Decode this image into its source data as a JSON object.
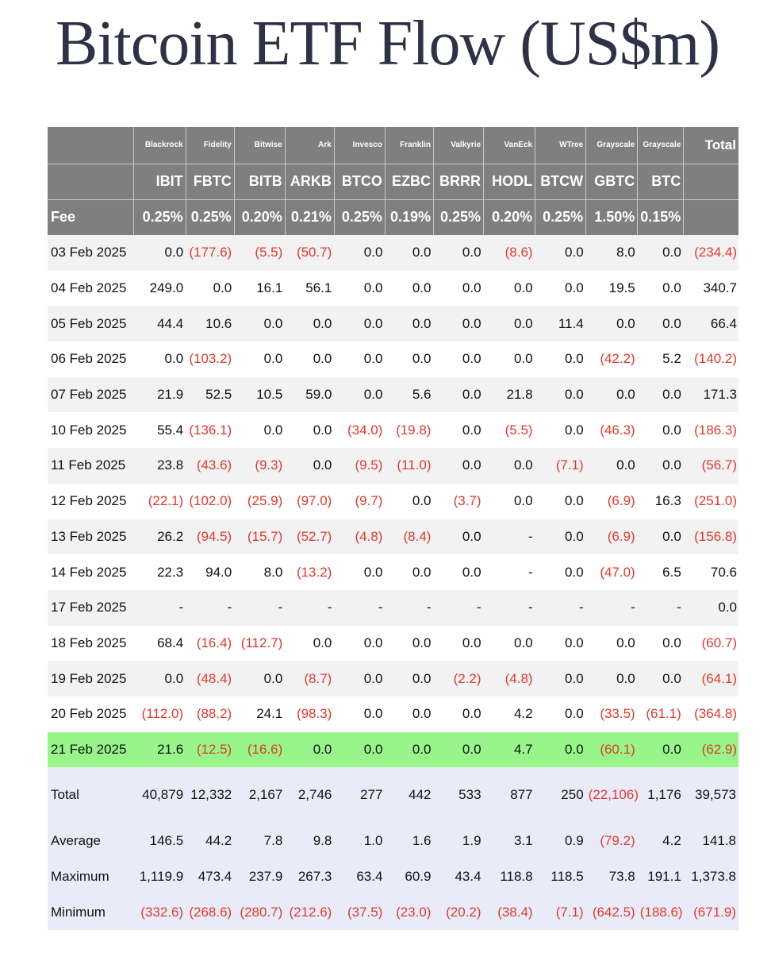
{
  "title": "Bitcoin ETF Flow (US$m)",
  "header": {
    "issuers": [
      "Blackrock",
      "Fidelity",
      "Bitwise",
      "Ark",
      "Invesco",
      "Franklin",
      "Valkyrie",
      "VanEck",
      "WTree",
      "Grayscale",
      "Grayscale"
    ],
    "total_label": "Total",
    "tickers": [
      "IBIT",
      "FBTC",
      "BITB",
      "ARKB",
      "BTCO",
      "EZBC",
      "BRRR",
      "HODL",
      "BTCW",
      "GBTC",
      "BTC"
    ],
    "fee_label": "Fee",
    "fees": [
      "0.25%",
      "0.25%",
      "0.20%",
      "0.21%",
      "0.25%",
      "0.19%",
      "0.25%",
      "0.20%",
      "0.25%",
      "1.50%",
      "0.15%"
    ]
  },
  "rows": [
    {
      "date": "03 Feb 2025",
      "values": [
        "0.0",
        "(177.6)",
        "(5.5)",
        "(50.7)",
        "0.0",
        "0.0",
        "0.0",
        "(8.6)",
        "0.0",
        "8.0",
        "0.0"
      ],
      "total": "(234.4)"
    },
    {
      "date": "04 Feb 2025",
      "values": [
        "249.0",
        "0.0",
        "16.1",
        "56.1",
        "0.0",
        "0.0",
        "0.0",
        "0.0",
        "0.0",
        "19.5",
        "0.0"
      ],
      "total": "340.7"
    },
    {
      "date": "05 Feb 2025",
      "values": [
        "44.4",
        "10.6",
        "0.0",
        "0.0",
        "0.0",
        "0.0",
        "0.0",
        "0.0",
        "11.4",
        "0.0",
        "0.0"
      ],
      "total": "66.4"
    },
    {
      "date": "06 Feb 2025",
      "values": [
        "0.0",
        "(103.2)",
        "0.0",
        "0.0",
        "0.0",
        "0.0",
        "0.0",
        "0.0",
        "0.0",
        "(42.2)",
        "5.2"
      ],
      "total": "(140.2)"
    },
    {
      "date": "07 Feb 2025",
      "values": [
        "21.9",
        "52.5",
        "10.5",
        "59.0",
        "0.0",
        "5.6",
        "0.0",
        "21.8",
        "0.0",
        "0.0",
        "0.0"
      ],
      "total": "171.3"
    },
    {
      "date": "10 Feb 2025",
      "values": [
        "55.4",
        "(136.1)",
        "0.0",
        "0.0",
        "(34.0)",
        "(19.8)",
        "0.0",
        "(5.5)",
        "0.0",
        "(46.3)",
        "0.0"
      ],
      "total": "(186.3)"
    },
    {
      "date": "11 Feb 2025",
      "values": [
        "23.8",
        "(43.6)",
        "(9.3)",
        "0.0",
        "(9.5)",
        "(11.0)",
        "0.0",
        "0.0",
        "(7.1)",
        "0.0",
        "0.0"
      ],
      "total": "(56.7)"
    },
    {
      "date": "12 Feb 2025",
      "values": [
        "(22.1)",
        "(102.0)",
        "(25.9)",
        "(97.0)",
        "(9.7)",
        "0.0",
        "(3.7)",
        "0.0",
        "0.0",
        "(6.9)",
        "16.3"
      ],
      "total": "(251.0)"
    },
    {
      "date": "13 Feb 2025",
      "values": [
        "26.2",
        "(94.5)",
        "(15.7)",
        "(52.7)",
        "(4.8)",
        "(8.4)",
        "0.0",
        "-",
        "0.0",
        "(6.9)",
        "0.0"
      ],
      "total": "(156.8)"
    },
    {
      "date": "14 Feb 2025",
      "values": [
        "22.3",
        "94.0",
        "8.0",
        "(13.2)",
        "0.0",
        "0.0",
        "0.0",
        "-",
        "0.0",
        "(47.0)",
        "6.5"
      ],
      "total": "70.6"
    },
    {
      "date": "17 Feb 2025",
      "values": [
        "-",
        "-",
        "-",
        "-",
        "-",
        "-",
        "-",
        "-",
        "-",
        "-",
        "-"
      ],
      "total": "0.0"
    },
    {
      "date": "18 Feb 2025",
      "values": [
        "68.4",
        "(16.4)",
        "(112.7)",
        "0.0",
        "0.0",
        "0.0",
        "0.0",
        "0.0",
        "0.0",
        "0.0",
        "0.0"
      ],
      "total": "(60.7)"
    },
    {
      "date": "19 Feb 2025",
      "values": [
        "0.0",
        "(48.4)",
        "0.0",
        "(8.7)",
        "0.0",
        "0.0",
        "(2.2)",
        "(4.8)",
        "0.0",
        "0.0",
        "0.0"
      ],
      "total": "(64.1)"
    },
    {
      "date": "20 Feb 2025",
      "values": [
        "(112.0)",
        "(88.2)",
        "24.1",
        "(98.3)",
        "0.0",
        "0.0",
        "0.0",
        "4.2",
        "0.0",
        "(33.5)",
        "(61.1)"
      ],
      "total": "(364.8)"
    },
    {
      "date": "21 Feb 2025",
      "values": [
        "21.6",
        "(12.5)",
        "(16.6)",
        "0.0",
        "0.0",
        "0.0",
        "0.0",
        "4.7",
        "0.0",
        "(60.1)",
        "0.0"
      ],
      "total": "(62.9)"
    }
  ],
  "highlight_row": "21 Feb 2025",
  "colors": {
    "header_bg": "#7f7f7f",
    "negative": "#e0392e",
    "highlight": "#97f58a",
    "stats_bg": "#e9ecf8",
    "title": "#2f3146"
  },
  "summary": [
    {
      "label": "Total",
      "values": [
        "40,879",
        "12,332",
        "2,167",
        "2,746",
        "277",
        "442",
        "533",
        "877",
        "250",
        "(22,106)",
        "1,176"
      ],
      "total": "39,573"
    },
    {
      "label": "Average",
      "values": [
        "146.5",
        "44.2",
        "7.8",
        "9.8",
        "1.0",
        "1.6",
        "1.9",
        "3.1",
        "0.9",
        "(79.2)",
        "4.2"
      ],
      "total": "141.8"
    },
    {
      "label": "Maximum",
      "values": [
        "1,119.9",
        "473.4",
        "237.9",
        "267.3",
        "63.4",
        "60.9",
        "43.4",
        "118.8",
        "118.5",
        "73.8",
        "191.1"
      ],
      "total": "1,373.8"
    },
    {
      "label": "Minimum",
      "values": [
        "(332.6)",
        "(268.6)",
        "(280.7)",
        "(212.6)",
        "(37.5)",
        "(23.0)",
        "(20.2)",
        "(38.4)",
        "(7.1)",
        "(642.5)",
        "(188.6)"
      ],
      "total": "(671.9)"
    }
  ]
}
